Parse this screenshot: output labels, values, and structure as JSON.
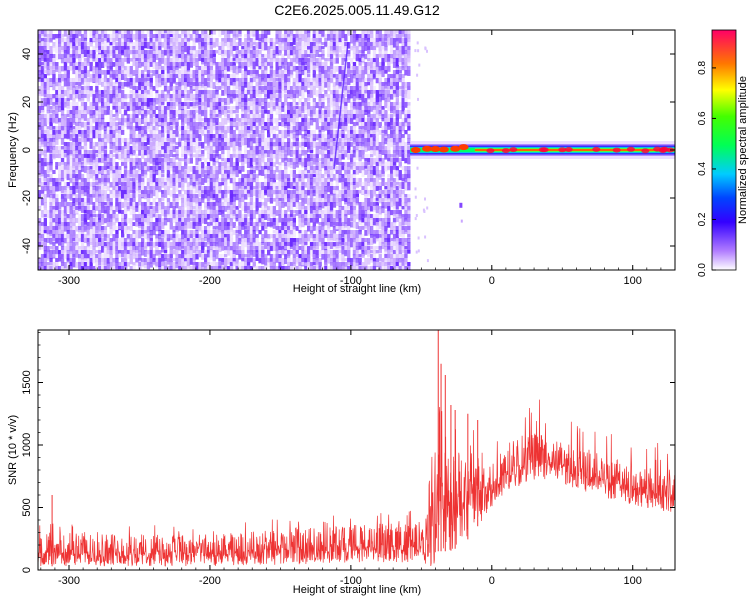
{
  "figure": {
    "title": "C2E6.2025.005.11.49.G12"
  },
  "chart_data": [
    {
      "type": "heatmap",
      "xlabel": "Height of straight line (km)",
      "ylabel": "Frequency (Hz)",
      "xlim": [
        -322,
        130
      ],
      "ylim": [
        -50,
        50
      ],
      "x_ticks": [
        -300,
        -200,
        -100,
        0,
        100
      ],
      "y_ticks": [
        -40,
        -20,
        0,
        20,
        40
      ],
      "colorbar": {
        "label": "Normalized spectral amplitude",
        "range": [
          0.0,
          0.95
        ],
        "ticks": [
          "0.0",
          "0.2",
          "0.4",
          "0.6",
          "0.8"
        ]
      },
      "noise_region_x": [
        -322,
        -58
      ],
      "signal_frequency": 0,
      "noise_fade_start": -58,
      "strong_signal_start": -12
    },
    {
      "type": "line",
      "xlabel": "Height of straight line (km)",
      "ylabel": "SNR (10 * v/v)",
      "xlim": [
        -322,
        130
      ],
      "ylim": [
        0,
        1920
      ],
      "x_ticks": [
        -300,
        -200,
        -100,
        0,
        100
      ],
      "y_ticks": [
        0,
        500,
        1000,
        1500
      ],
      "series": [
        {
          "color": "#ee3333",
          "profile": [
            {
              "x": -322,
              "lo": 30,
              "hi": 300
            },
            {
              "x": -250,
              "lo": 30,
              "hi": 290
            },
            {
              "x": -200,
              "lo": 30,
              "hi": 280
            },
            {
              "x": -150,
              "lo": 40,
              "hi": 330
            },
            {
              "x": -100,
              "lo": 60,
              "hi": 360
            },
            {
              "x": -50,
              "lo": 60,
              "hi": 390
            },
            {
              "x": -45,
              "lo": 20,
              "hi": 500
            },
            {
              "x": -40,
              "lo": 50,
              "hi": 1050
            },
            {
              "x": -38,
              "lo": 150,
              "hi": 1400
            },
            {
              "x": -30,
              "lo": 150,
              "hi": 1050
            },
            {
              "x": -20,
              "lo": 200,
              "hi": 1000
            },
            {
              "x": -10,
              "lo": 350,
              "hi": 1000
            },
            {
              "x": 0,
              "lo": 500,
              "hi": 950
            },
            {
              "x": 10,
              "lo": 630,
              "hi": 1020
            },
            {
              "x": 30,
              "lo": 720,
              "hi": 1100
            },
            {
              "x": 40,
              "lo": 720,
              "hi": 1080
            },
            {
              "x": 60,
              "lo": 650,
              "hi": 1000
            },
            {
              "x": 80,
              "lo": 580,
              "hi": 920
            },
            {
              "x": 100,
              "lo": 520,
              "hi": 860
            },
            {
              "x": 130,
              "lo": 450,
              "hi": 800
            }
          ],
          "spikes": [
            {
              "x": -322,
              "y": 520
            },
            {
              "x": -312,
              "y": 600
            },
            {
              "x": -38,
              "y": 1920
            },
            {
              "x": -36,
              "y": 1650
            },
            {
              "x": -33,
              "y": 1560
            },
            {
              "x": -29,
              "y": 1320
            },
            {
              "x": -26,
              "y": 1280
            },
            {
              "x": -17,
              "y": 1250
            },
            {
              "x": -10,
              "y": 1200
            }
          ]
        }
      ]
    }
  ]
}
